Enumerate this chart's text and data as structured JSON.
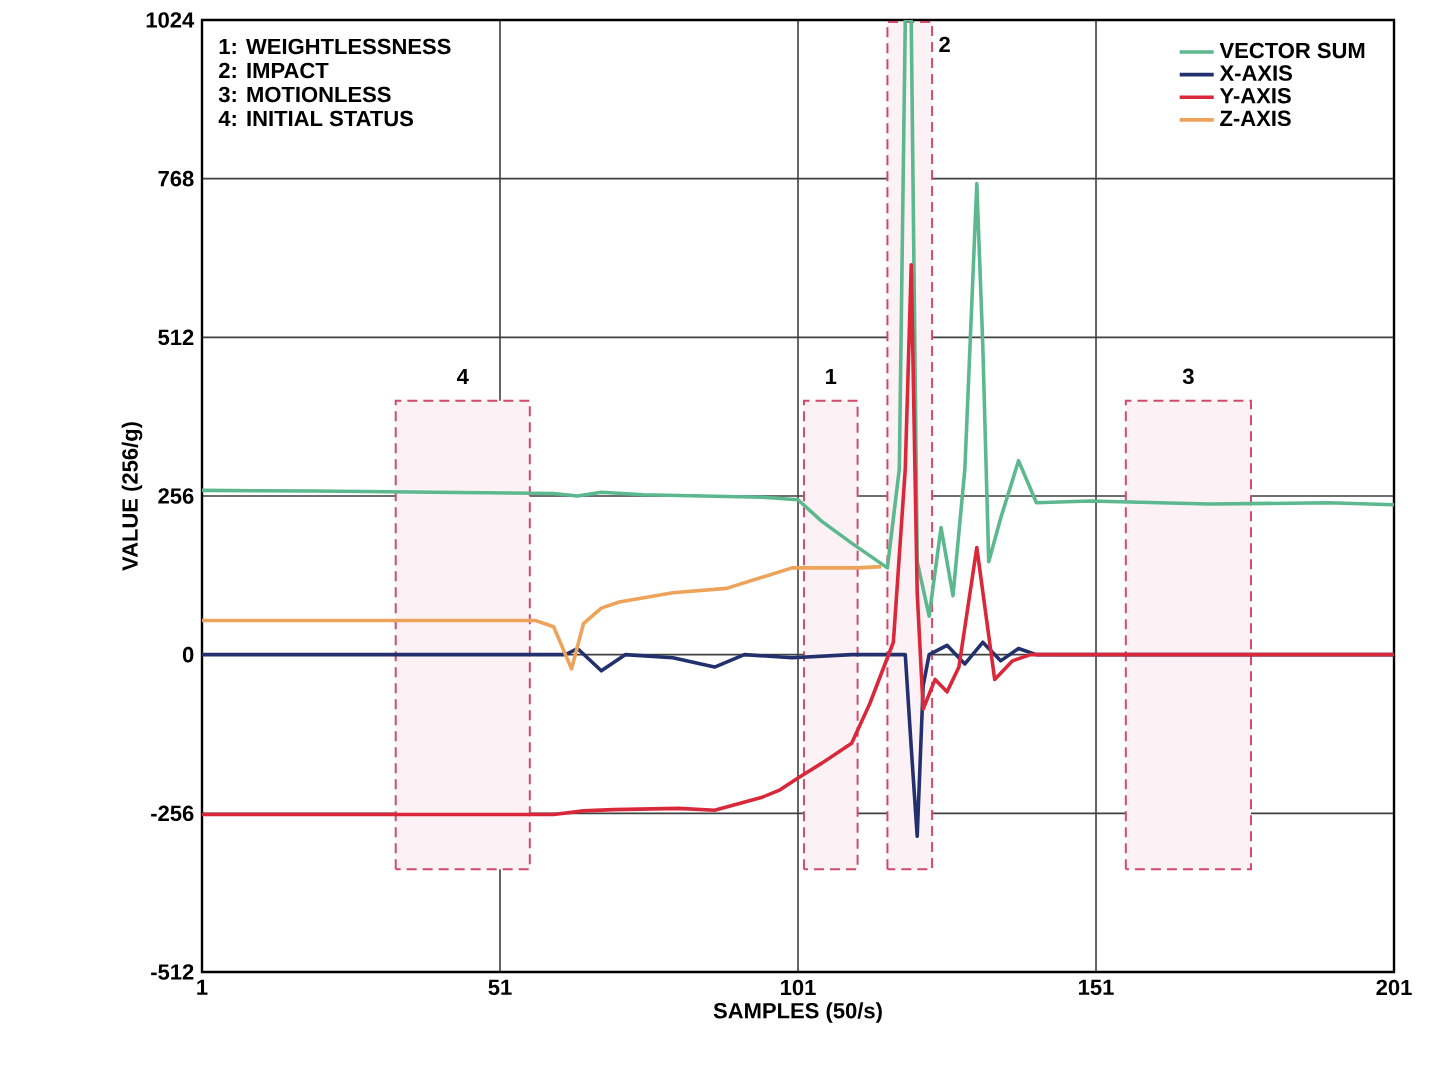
{
  "chart_data": {
    "type": "line",
    "xlabel": "SAMPLES (50/s)",
    "ylabel": "VALUE (256/g)",
    "xlim": [
      1,
      201
    ],
    "xticks": [
      1,
      51,
      101,
      151,
      201
    ],
    "ylim": [
      -512,
      1024
    ],
    "yticks": [
      -512,
      -256,
      0,
      256,
      512,
      768,
      1024
    ],
    "grid": true,
    "legend": "top right",
    "line_style": "solid",
    "annotations": [
      "1: WEIGHTLESSNESS",
      "2: IMPACT",
      "3: MOTIONLESS",
      "4: INITIAL STATUS"
    ],
    "bands": [
      {
        "axis": "x",
        "from": 102,
        "to": 111,
        "label": "1",
        "color": "#d04a6a"
      },
      {
        "axis": "x",
        "from": 116,
        "to": 123.5,
        "label": "2",
        "color": "#d04a6a"
      },
      {
        "axis": "x",
        "from": 156,
        "to": 177,
        "label": "3",
        "color": "#d04a6a"
      },
      {
        "axis": "x",
        "from": 33.5,
        "to": 56,
        "label": "4",
        "color": "#d04a6a"
      }
    ],
    "series": [
      {
        "name": "VECTOR SUM",
        "color": "#5cb88f",
        "x": [
          1,
          20,
          40,
          60,
          64,
          68,
          75,
          85,
          95,
          101,
          105,
          110,
          116,
          118,
          119,
          120,
          121,
          123,
          125,
          127,
          129,
          131,
          132,
          133,
          135,
          138,
          141,
          150,
          170,
          190,
          201
        ],
        "values": [
          265,
          264,
          262,
          260,
          256,
          262,
          258,
          256,
          254,
          250,
          215,
          180,
          140,
          300,
          1024,
          1024,
          150,
          62,
          205,
          95,
          300,
          760,
          500,
          150,
          220,
          313,
          245,
          248,
          243,
          245,
          242
        ]
      },
      {
        "name": "X-AXIS",
        "color": "#23306e",
        "x": [
          1,
          30,
          62,
          64,
          68,
          72,
          80,
          87,
          92,
          100,
          110,
          116,
          119,
          120,
          121,
          122,
          123,
          126,
          129,
          132,
          135,
          138,
          141,
          160,
          201
        ],
        "values": [
          0,
          0,
          0,
          10,
          -26,
          0,
          -5,
          -20,
          0,
          -5,
          0,
          0,
          0,
          -150,
          -293,
          -50,
          0,
          15,
          -15,
          20,
          -10,
          10,
          0,
          0,
          0
        ]
      },
      {
        "name": "Y-AXIS",
        "color": "#d8283a",
        "x": [
          1,
          30,
          60,
          65,
          70,
          81,
          87,
          95,
          98,
          101,
          105,
          110,
          113,
          117,
          119,
          120,
          121,
          122,
          124,
          126,
          128,
          131,
          134,
          137,
          140,
          150,
          201
        ],
        "values": [
          -258,
          -258,
          -258,
          -252,
          -250,
          -248,
          -251,
          -230,
          -218,
          -199,
          -175,
          -143,
          -80,
          20,
          300,
          629,
          100,
          -88,
          -40,
          -60,
          -20,
          173,
          -40,
          -10,
          0,
          0,
          0
        ]
      },
      {
        "name": "Z-AXIS",
        "color": "#eda35a",
        "x": [
          1,
          30,
          57,
          60,
          63,
          65,
          68,
          71,
          80,
          89,
          100,
          111,
          115
        ],
        "values": [
          55,
          55,
          55,
          45,
          -23,
          50,
          75,
          85,
          100,
          107,
          140,
          140,
          142
        ]
      }
    ]
  }
}
